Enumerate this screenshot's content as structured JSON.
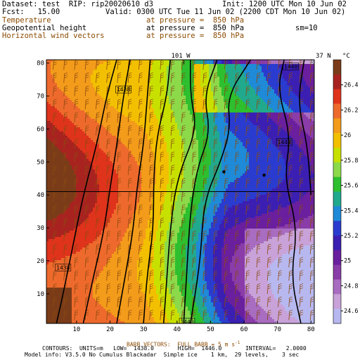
{
  "header": {
    "dataset": "Dataset: test  RIP: rip20020610 d3",
    "init": "Init: 1200 UTC Mon 10 Jun 02",
    "fcst": "Fcst:   15.00",
    "valid": "Valid: 0300 UTC Tue 11 Jun 02 (2200 CDT Mon 10 Jun 02)",
    "fields": [
      {
        "name": "Temperature",
        "level": "at pressure =  850 hPa",
        "color": "#8a4a00"
      },
      {
        "name": "Geopotential height",
        "level": "at pressure =  850 hPa",
        "color": "#000000"
      },
      {
        "name": "Horizontal wind vectors",
        "level": "at pressure =  850 hPa",
        "color": "#8a4a00"
      }
    ],
    "smoothing": "sm=10"
  },
  "footer": {
    "barb_line": "BARB VECTORS:  FULL BARB = 5 m s",
    "barb_exp": "-1",
    "contours_line": "CONTOURS:  UNITS=m   LOW=  1438.0       HIGH=  1446.0       INTERVAL=   2.0000",
    "model_line": "Model info: V3.5.0 No Cumulus Blackadar  Simple ice    1 km,  29 levels,    3 sec"
  },
  "map_labels": {
    "top_longitude": "101 W",
    "right_latitude": "37 N",
    "colorbar_unit": "°C"
  },
  "contour_labels": [
    "1438",
    "1438",
    "1440",
    "1440",
    "1440"
  ],
  "colors": {
    "scale": [
      "#7a3c18",
      "#a8231f",
      "#e0331c",
      "#ee6a2c",
      "#f39b1a",
      "#f2c000",
      "#c8e000",
      "#8cd94a",
      "#2ebf2f",
      "#21a98e",
      "#1f8ad7",
      "#2a3ccf",
      "#3b1fb3",
      "#6a1f9e",
      "#8a3ca8",
      "#a86cc0",
      "#c8a2d8",
      "#b8b8f0"
    ],
    "barb": "#8b4a10",
    "contour": "#000000"
  },
  "chart_data": {
    "type": "heatmap",
    "title": "",
    "x_ticks": [
      10,
      20,
      30,
      40,
      50,
      60,
      70,
      80
    ],
    "y_ticks": [
      10,
      20,
      30,
      40,
      50,
      60,
      70,
      80
    ],
    "xlim": [
      1,
      81
    ],
    "ylim": [
      1,
      81
    ],
    "colorbar": {
      "unit": "°C",
      "ticks": [
        26.4,
        26.2,
        26,
        25.8,
        25.6,
        25.4,
        25.2,
        25,
        24.8,
        24.6
      ],
      "range": [
        24.5,
        26.6
      ]
    },
    "contours": {
      "units": "m",
      "low": 1438.0,
      "high": 1446.0,
      "interval": 2.0
    },
    "reference_line": {
      "y": 41,
      "label": "37 N"
    },
    "reference_meridian": {
      "x": 42,
      "label": "101 W"
    },
    "pressure_level_hPa": 850
  }
}
